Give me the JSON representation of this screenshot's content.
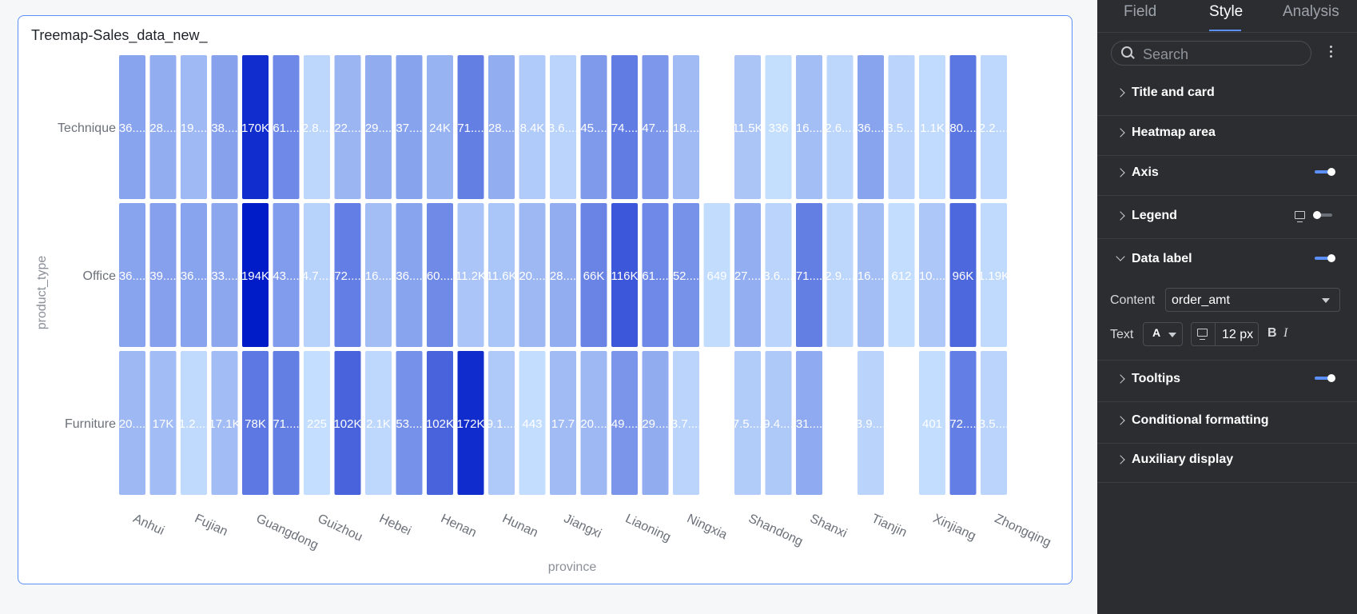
{
  "card": {
    "title": "Treemap-Sales_data_new_"
  },
  "chart_data": {
    "type": "heatmap",
    "xlabel": "province",
    "ylabel": "product_type",
    "rows": [
      "Technique",
      "Office",
      "Furniture"
    ],
    "x_tick_labels": [
      "Anhui",
      "Fujian",
      "Guangdong",
      "Guizhou",
      "Hebei",
      "Henan",
      "Hunan",
      "Jiangxi",
      "Liaoning",
      "Ningxia",
      "Shandong",
      "Shanxi",
      "Tianjin",
      "Xinjiang",
      "Zhongqing"
    ],
    "column_count": 29,
    "cells": [
      {
        "row": 0,
        "col": 0,
        "label": "36....",
        "value": 36000
      },
      {
        "row": 0,
        "col": 1,
        "label": "28....",
        "value": 28000
      },
      {
        "row": 0,
        "col": 2,
        "label": "19....",
        "value": 19000
      },
      {
        "row": 0,
        "col": 3,
        "label": "38....",
        "value": 38000
      },
      {
        "row": 0,
        "col": 4,
        "label": "170K",
        "value": 170000
      },
      {
        "row": 0,
        "col": 5,
        "label": "61....",
        "value": 61000
      },
      {
        "row": 0,
        "col": 6,
        "label": "2.8....",
        "value": 2800
      },
      {
        "row": 0,
        "col": 7,
        "label": "22....",
        "value": 22000
      },
      {
        "row": 0,
        "col": 8,
        "label": "29....",
        "value": 29000
      },
      {
        "row": 0,
        "col": 9,
        "label": "37....",
        "value": 37000
      },
      {
        "row": 0,
        "col": 10,
        "label": "24K",
        "value": 24000
      },
      {
        "row": 0,
        "col": 11,
        "label": "71....",
        "value": 71000
      },
      {
        "row": 0,
        "col": 12,
        "label": "28....",
        "value": 28000
      },
      {
        "row": 0,
        "col": 13,
        "label": "8.4K",
        "value": 8400
      },
      {
        "row": 0,
        "col": 14,
        "label": "3.6....",
        "value": 3600
      },
      {
        "row": 0,
        "col": 15,
        "label": "45....",
        "value": 45000
      },
      {
        "row": 0,
        "col": 16,
        "label": "74....",
        "value": 74000
      },
      {
        "row": 0,
        "col": 17,
        "label": "47....",
        "value": 47000
      },
      {
        "row": 0,
        "col": 18,
        "label": "18....",
        "value": 18000
      },
      {
        "row": 0,
        "col": 20,
        "label": "11.5K",
        "value": 11500
      },
      {
        "row": 0,
        "col": 21,
        "label": "336",
        "value": 336
      },
      {
        "row": 0,
        "col": 22,
        "label": "16....",
        "value": 16000
      },
      {
        "row": 0,
        "col": 23,
        "label": "2.6....",
        "value": 2600
      },
      {
        "row": 0,
        "col": 24,
        "label": "36....",
        "value": 36000
      },
      {
        "row": 0,
        "col": 25,
        "label": "3.5....",
        "value": 3500
      },
      {
        "row": 0,
        "col": 26,
        "label": "1.1K",
        "value": 1100
      },
      {
        "row": 0,
        "col": 27,
        "label": "80....",
        "value": 80000
      },
      {
        "row": 0,
        "col": 28,
        "label": "2.2....",
        "value": 2200
      },
      {
        "row": 1,
        "col": 0,
        "label": "36....",
        "value": 36000
      },
      {
        "row": 1,
        "col": 1,
        "label": "39....",
        "value": 39000
      },
      {
        "row": 1,
        "col": 2,
        "label": "36....",
        "value": 36000
      },
      {
        "row": 1,
        "col": 3,
        "label": "33....",
        "value": 33000
      },
      {
        "row": 1,
        "col": 4,
        "label": "194K",
        "value": 194000
      },
      {
        "row": 1,
        "col": 5,
        "label": "43....",
        "value": 43000
      },
      {
        "row": 1,
        "col": 6,
        "label": "4.7....",
        "value": 4700
      },
      {
        "row": 1,
        "col": 7,
        "label": "72....",
        "value": 72000
      },
      {
        "row": 1,
        "col": 8,
        "label": "16....",
        "value": 16000
      },
      {
        "row": 1,
        "col": 9,
        "label": "36....",
        "value": 36000
      },
      {
        "row": 1,
        "col": 10,
        "label": "60....",
        "value": 60000
      },
      {
        "row": 1,
        "col": 11,
        "label": "11.2K",
        "value": 11200
      },
      {
        "row": 1,
        "col": 12,
        "label": "11.6K",
        "value": 11600
      },
      {
        "row": 1,
        "col": 13,
        "label": "20....",
        "value": 20000
      },
      {
        "row": 1,
        "col": 14,
        "label": "28....",
        "value": 28000
      },
      {
        "row": 1,
        "col": 15,
        "label": "66K",
        "value": 66000
      },
      {
        "row": 1,
        "col": 16,
        "label": "116K",
        "value": 116000
      },
      {
        "row": 1,
        "col": 17,
        "label": "61....",
        "value": 61000
      },
      {
        "row": 1,
        "col": 18,
        "label": "52....",
        "value": 52000
      },
      {
        "row": 1,
        "col": 19,
        "label": "649",
        "value": 649
      },
      {
        "row": 1,
        "col": 20,
        "label": "27....",
        "value": 27000
      },
      {
        "row": 1,
        "col": 21,
        "label": "3.6....",
        "value": 3600
      },
      {
        "row": 1,
        "col": 22,
        "label": "71....",
        "value": 71000
      },
      {
        "row": 1,
        "col": 23,
        "label": "2.9....",
        "value": 2900
      },
      {
        "row": 1,
        "col": 24,
        "label": "16....",
        "value": 16000
      },
      {
        "row": 1,
        "col": 25,
        "label": "612",
        "value": 612
      },
      {
        "row": 1,
        "col": 26,
        "label": "10....",
        "value": 10000
      },
      {
        "row": 1,
        "col": 27,
        "label": "96K",
        "value": 96000
      },
      {
        "row": 1,
        "col": 28,
        "label": "1.19K",
        "value": 1190
      },
      {
        "row": 2,
        "col": 0,
        "label": "20....",
        "value": 20000
      },
      {
        "row": 2,
        "col": 1,
        "label": "17K",
        "value": 17000
      },
      {
        "row": 2,
        "col": 2,
        "label": "1.2....",
        "value": 1200
      },
      {
        "row": 2,
        "col": 3,
        "label": "17.1K",
        "value": 17100
      },
      {
        "row": 2,
        "col": 4,
        "label": "78K",
        "value": 78000
      },
      {
        "row": 2,
        "col": 5,
        "label": "71....",
        "value": 71000
      },
      {
        "row": 2,
        "col": 6,
        "label": "225",
        "value": 225
      },
      {
        "row": 2,
        "col": 7,
        "label": "102K",
        "value": 102000
      },
      {
        "row": 2,
        "col": 8,
        "label": "2.1K",
        "value": 2100
      },
      {
        "row": 2,
        "col": 9,
        "label": "53....",
        "value": 53000
      },
      {
        "row": 2,
        "col": 10,
        "label": "102K",
        "value": 102000
      },
      {
        "row": 2,
        "col": 11,
        "label": "172K",
        "value": 172000
      },
      {
        "row": 2,
        "col": 12,
        "label": "9.1....",
        "value": 9100
      },
      {
        "row": 2,
        "col": 13,
        "label": "443",
        "value": 443
      },
      {
        "row": 2,
        "col": 14,
        "label": "17.7",
        "value": 17700
      },
      {
        "row": 2,
        "col": 15,
        "label": "20....",
        "value": 20000
      },
      {
        "row": 2,
        "col": 16,
        "label": "49....",
        "value": 49000
      },
      {
        "row": 2,
        "col": 17,
        "label": "29....",
        "value": 29000
      },
      {
        "row": 2,
        "col": 18,
        "label": "3.7....",
        "value": 3700
      },
      {
        "row": 2,
        "col": 20,
        "label": "7.5....",
        "value": 7500
      },
      {
        "row": 2,
        "col": 21,
        "label": "9.4....",
        "value": 9400
      },
      {
        "row": 2,
        "col": 22,
        "label": "31....",
        "value": 31000
      },
      {
        "row": 2,
        "col": 24,
        "label": "3.9....",
        "value": 3900
      },
      {
        "row": 2,
        "col": 26,
        "label": "401",
        "value": 401
      },
      {
        "row": 2,
        "col": 27,
        "label": "72....",
        "value": 72000
      },
      {
        "row": 2,
        "col": 28,
        "label": "3.5....",
        "value": 3500
      }
    ],
    "color_min": "#c6e0ff",
    "color_max": "#001cc8",
    "value_range": [
      0,
      194000
    ],
    "grid": false,
    "legend": "none"
  },
  "panel": {
    "tabs": [
      {
        "label": "Field",
        "active": false
      },
      {
        "label": "Style",
        "active": true
      },
      {
        "label": "Analysis",
        "active": false
      }
    ],
    "search": {
      "placeholder": "Search",
      "value": ""
    },
    "sections": {
      "title_card": "Title and card",
      "heatmap_area": "Heatmap area",
      "axis": "Axis",
      "legend": "Legend",
      "data_label": "Data label",
      "tooltips": "Tooltips",
      "conditional_formatting": "Conditional formatting",
      "auxiliary_display": "Auxiliary display"
    },
    "toggles": {
      "axis": true,
      "legend": false,
      "data_label": true,
      "tooltips": true
    },
    "data_label": {
      "content_label": "Content",
      "content_value": "order_amt",
      "text_label": "Text",
      "color_glyph": "A",
      "font_size": "12 px",
      "bold": "B",
      "italic": "I"
    },
    "colors": {
      "accent": "#5b8ff9",
      "background": "#2b2d31"
    }
  }
}
